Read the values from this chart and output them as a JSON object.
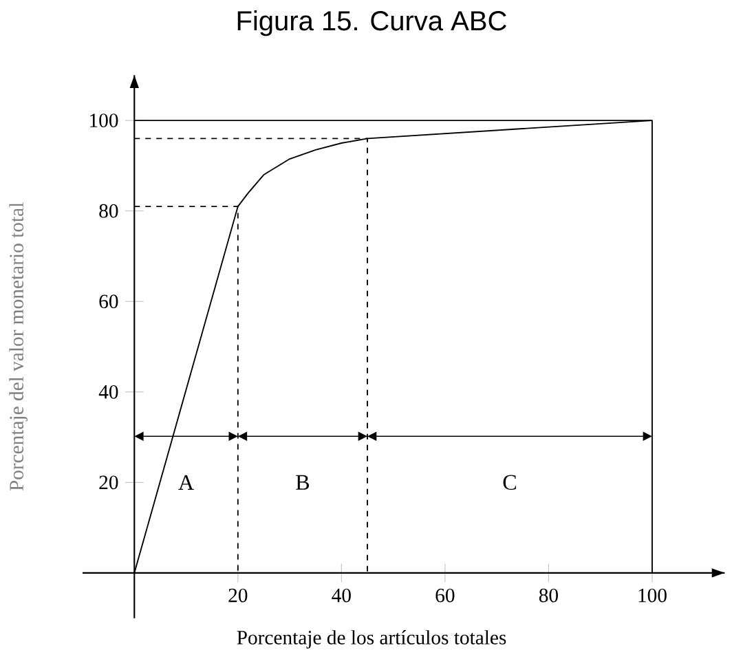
{
  "chart_data": {
    "type": "line",
    "title": "Figura 15. Curva ABC",
    "xlabel": "Porcentaje de los artículos totales",
    "ylabel": "Porcentaje del valor monetario total",
    "xlim": [
      -10,
      114
    ],
    "ylim": [
      -10,
      110
    ],
    "xticks": [
      20,
      40,
      60,
      80,
      100
    ],
    "yticks": [
      20,
      40,
      60,
      80,
      100
    ],
    "series": [
      {
        "color": "#000000",
        "line_style": "solid",
        "x": [
          0,
          20,
          22,
          25,
          30,
          35,
          40,
          45,
          100
        ],
        "values": [
          0,
          81,
          84,
          88,
          91.5,
          93.5,
          95,
          96,
          100
        ]
      },
      {
        "color": "#000000",
        "line_style": "dashed",
        "x": [
          0,
          20,
          20
        ],
        "values": [
          81,
          81,
          0
        ]
      },
      {
        "color": "#000000",
        "line_style": "dashed",
        "x": [
          0,
          45,
          45
        ],
        "values": [
          96,
          96,
          0
        ]
      },
      {
        "color": "#000000",
        "line_style": "solid",
        "x": [
          0,
          100,
          100
        ],
        "values": [
          100,
          100,
          0
        ]
      }
    ],
    "annotations": [
      "A",
      "B",
      "C"
    ],
    "marker": "none",
    "grid": false
  }
}
